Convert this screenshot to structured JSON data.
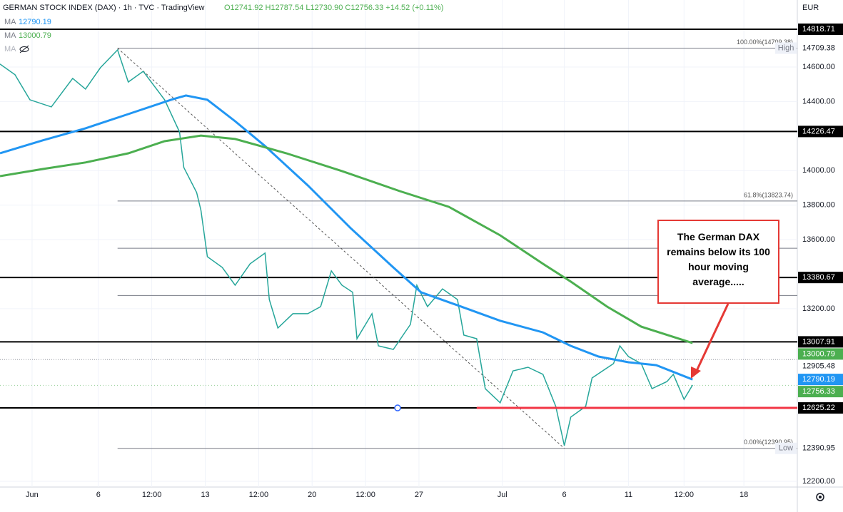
{
  "header": {
    "title": "GERMAN STOCK INDEX (DAX) · 1h · TVC · TradingView",
    "ohlc": "O12741.92 H12787.54 L12730.90 C12756.33 +14.52 (+0.11%)",
    "currency": "EUR",
    "hidden_indicator": "MA"
  },
  "chart_data": {
    "type": "line",
    "xlim": [
      -1.5,
      35.8
    ],
    "ylim": [
      12167,
      14988
    ],
    "xticks": [
      {
        "value": 0,
        "label": "Jun"
      },
      {
        "value": 3.1,
        "label": "6"
      },
      {
        "value": 5.6,
        "label": "12:00"
      },
      {
        "value": 8.1,
        "label": "13"
      },
      {
        "value": 10.6,
        "label": "12:00"
      },
      {
        "value": 13.1,
        "label": "20"
      },
      {
        "value": 15.6,
        "label": "12:00"
      },
      {
        "value": 18.1,
        "label": "27"
      },
      {
        "value": 22,
        "label": "Jul"
      },
      {
        "value": 24.9,
        "label": "6"
      },
      {
        "value": 27.9,
        "label": "11"
      },
      {
        "value": 30.5,
        "label": "12:00"
      },
      {
        "value": 33.3,
        "label": "18"
      }
    ],
    "yticks": [
      {
        "value": 14600,
        "label": "14600.00"
      },
      {
        "value": 14400,
        "label": "14400.00"
      },
      {
        "value": 14000,
        "label": "14000.00"
      },
      {
        "value": 13800,
        "label": "13800.00"
      },
      {
        "value": 13600,
        "label": "13600.00"
      },
      {
        "value": 13200,
        "label": "13200.00"
      },
      {
        "value": 12200,
        "label": "12200.00"
      }
    ],
    "series": [
      {
        "name": "MA",
        "color": "#2196f3",
        "legend_value": 12790.19,
        "x": [
          -1.5,
          0.5,
          2.5,
          4.5,
          6.5,
          7.2,
          8.2,
          9.5,
          10.9,
          12.9,
          14.9,
          16.9,
          18.2,
          19.9,
          21.9,
          23.9,
          25.2,
          26.5,
          27.9,
          29.2,
          30.9
        ],
        "values": [
          14100,
          14175,
          14245,
          14327,
          14410,
          14435,
          14410,
          14286,
          14142,
          13914,
          13667,
          13439,
          13295,
          13220,
          13130,
          13063,
          12985,
          12923,
          12890,
          12873,
          12790
        ]
      },
      {
        "name": "MA",
        "color": "#4caf50",
        "legend_value": 13000.79,
        "x": [
          -1.5,
          0.5,
          2.5,
          4.5,
          6.2,
          7.9,
          9.5,
          11.9,
          14.5,
          17.2,
          19.5,
          21.9,
          23.9,
          25.2,
          26.9,
          28.5,
          30.9
        ],
        "values": [
          13968,
          14009,
          14047,
          14100,
          14170,
          14203,
          14183,
          14100,
          13997,
          13881,
          13790,
          13625,
          13460,
          13357,
          13212,
          13096,
          13001
        ]
      }
    ],
    "price": {
      "color": "#26a69a",
      "x": [
        -1.5,
        -0.8,
        -0.1,
        0.9,
        1.9,
        2.5,
        3.2,
        4,
        4.5,
        5.2,
        6.2,
        6.9,
        7.1,
        7.7,
        7.9,
        8.2,
        8.9,
        9.5,
        10.2,
        10.9,
        11.1,
        11.5,
        12.2,
        12.9,
        13.5,
        14,
        14.5,
        15,
        15.2,
        15.9,
        16.2,
        16.9,
        17.7,
        18,
        18.5,
        19.2,
        19.9,
        20.2,
        20.8,
        21.2,
        21.9,
        22.5,
        23.2,
        23.9,
        24.5,
        24.9,
        25.2,
        25.9,
        26.2,
        27.2,
        27.5,
        27.9,
        28.5,
        29,
        29.7,
        30,
        30.5,
        30.9
      ],
      "values": [
        14617,
        14555,
        14410,
        14369,
        14534,
        14472,
        14596,
        14699,
        14513,
        14575,
        14410,
        14224,
        14018,
        13873,
        13770,
        13501,
        13439,
        13336,
        13460,
        13522,
        13253,
        13088,
        13171,
        13171,
        13212,
        13419,
        13336,
        13295,
        13026,
        13171,
        12985,
        12964,
        13109,
        13336,
        13212,
        13315,
        13253,
        13047,
        13026,
        12737,
        12655,
        12840,
        12861,
        12820,
        12634,
        12407,
        12572,
        12634,
        12799,
        12882,
        12985,
        12923,
        12882,
        12737,
        12778,
        12820,
        12675,
        12758
      ]
    },
    "levels": [
      {
        "value": 14818.71,
        "line": "solid",
        "label_bg": "#000000",
        "label_color": "#ffffff"
      },
      {
        "value": 14226.47,
        "line": "solid",
        "label_bg": "#000000",
        "label_color": "#ffffff"
      },
      {
        "value": 13380.67,
        "line": "solid",
        "label_bg": "#000000",
        "label_color": "#ffffff"
      },
      {
        "value": 13007.91,
        "line": "solid",
        "label_bg": "#000000",
        "label_color": "#ffffff"
      },
      {
        "value": 13000.79,
        "line": "none",
        "label_bg": "#4caf50",
        "label_color": "#ffffff"
      },
      {
        "value": 12905.48,
        "line": "dotted",
        "label_bg": "#ffffff",
        "label_color": "#131722"
      },
      {
        "value": 12790.19,
        "line": "none",
        "label_bg": "#2196f3",
        "label_color": "#ffffff"
      },
      {
        "value": 12756.33,
        "line": "dotted-green",
        "label_bg": "#4caf50",
        "label_color": "#ffffff"
      },
      {
        "value": 12625.22,
        "line": "solid",
        "label_bg": "#000000",
        "label_color": "#ffffff"
      }
    ],
    "fib_start": 4,
    "fib": [
      {
        "value": 14709.38,
        "label": "100.00%(14709.38)",
        "tag": "High"
      },
      {
        "value": 13823.74,
        "label": "61.8%(13823.74)"
      },
      {
        "value": 13550.17
      },
      {
        "value": 13276.59
      },
      {
        "value": 12390.95,
        "label": "0.00%(12390.95)",
        "tag": "Low"
      }
    ],
    "support": {
      "value": 12625.22,
      "x": [
        20.8,
        35.8
      ],
      "color": "#f23645"
    },
    "trendline": {
      "x": [
        4,
        24.9
      ],
      "values": [
        14709.38,
        12390.95
      ]
    },
    "annotation": "The  German DAX remains below its 100 hour moving average....."
  }
}
